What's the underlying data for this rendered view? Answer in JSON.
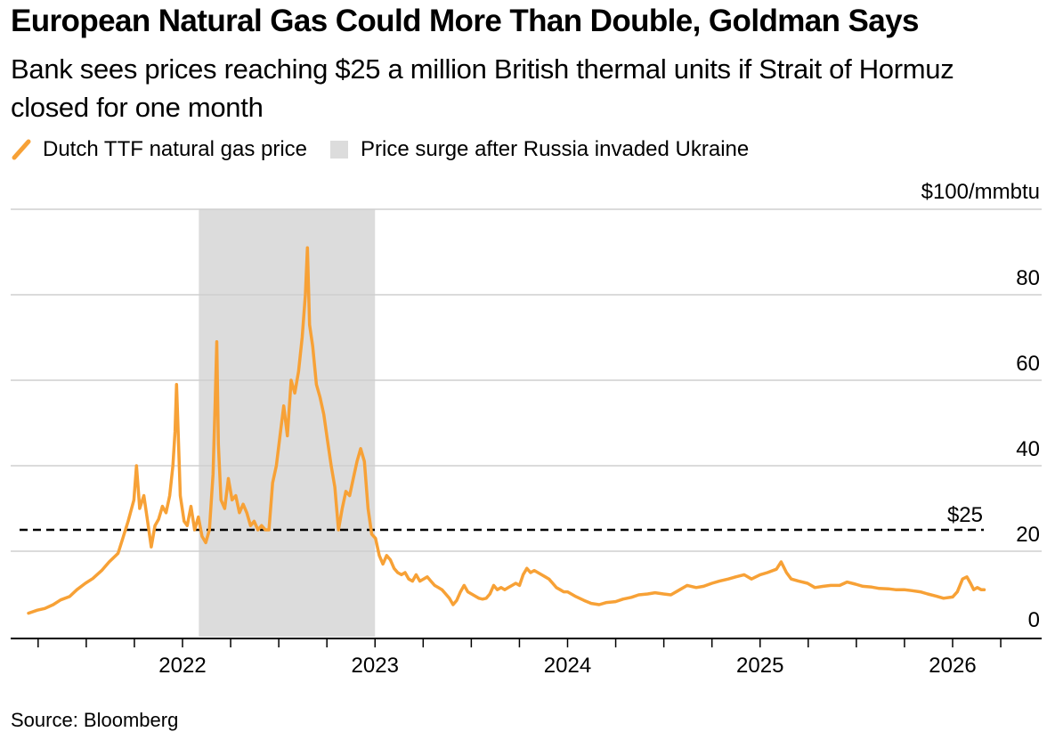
{
  "title": "European Natural Gas Could More Than Double, Goldman Says",
  "subtitle": "Bank sees prices reaching $25 a million British thermal units if Strait of Hormuz closed for one month",
  "legend": {
    "series_label": "Dutch TTF natural gas price",
    "shade_label": "Price surge after Russia invaded Ukraine"
  },
  "source": "Source: Bloomberg",
  "colors": {
    "line": "#f7a136",
    "shade": "#dcdcdc",
    "grid": "#cfcfcf",
    "axis": "#000000"
  },
  "chart_data": {
    "type": "line",
    "ylim": [
      0,
      100
    ],
    "y_ticks": [
      {
        "value": 0,
        "label": "0"
      },
      {
        "value": 20,
        "label": "20"
      },
      {
        "value": 40,
        "label": "40"
      },
      {
        "value": 60,
        "label": "60"
      },
      {
        "value": 80,
        "label": "80"
      },
      {
        "value": 100,
        "label": "$100/mmbtu"
      }
    ],
    "x_range": [
      "2021-03-01",
      "2026-05-01"
    ],
    "x_ticks": [
      "2022",
      "2023",
      "2024",
      "2025",
      "2026"
    ],
    "reference_line": {
      "value": 25,
      "label": "$25"
    },
    "shaded_period": [
      "2022-02-01",
      "2023-01-01"
    ],
    "series": [
      {
        "name": "Dutch TTF natural gas price",
        "points": [
          [
            "2021-03-15",
            5.5
          ],
          [
            "2021-04-01",
            6.2
          ],
          [
            "2021-04-15",
            6.6
          ],
          [
            "2021-05-01",
            7.5
          ],
          [
            "2021-05-15",
            8.6
          ],
          [
            "2021-06-01",
            9.4
          ],
          [
            "2021-06-15",
            11.0
          ],
          [
            "2021-07-01",
            12.5
          ],
          [
            "2021-07-15",
            13.6
          ],
          [
            "2021-08-01",
            15.5
          ],
          [
            "2021-08-15",
            17.5
          ],
          [
            "2021-09-01",
            19.5
          ],
          [
            "2021-09-10",
            23.0
          ],
          [
            "2021-09-20",
            27.0
          ],
          [
            "2021-10-01",
            32.0
          ],
          [
            "2021-10-06",
            40.0
          ],
          [
            "2021-10-12",
            30.0
          ],
          [
            "2021-10-20",
            33.0
          ],
          [
            "2021-10-27",
            27.0
          ],
          [
            "2021-11-03",
            21.0
          ],
          [
            "2021-11-10",
            26.0
          ],
          [
            "2021-11-17",
            27.5
          ],
          [
            "2021-11-24",
            30.5
          ],
          [
            "2021-12-01",
            29.0
          ],
          [
            "2021-12-08",
            33.0
          ],
          [
            "2021-12-14",
            40.0
          ],
          [
            "2021-12-18",
            48.0
          ],
          [
            "2021-12-21",
            59.0
          ],
          [
            "2021-12-24",
            48.0
          ],
          [
            "2021-12-28",
            33.0
          ],
          [
            "2022-01-04",
            27.0
          ],
          [
            "2022-01-10",
            26.0
          ],
          [
            "2022-01-17",
            30.5
          ],
          [
            "2022-01-24",
            25.0
          ],
          [
            "2022-01-31",
            28.0
          ],
          [
            "2022-02-07",
            23.5
          ],
          [
            "2022-02-14",
            22.0
          ],
          [
            "2022-02-21",
            25.0
          ],
          [
            "2022-02-28",
            38.0
          ],
          [
            "2022-03-04",
            55.0
          ],
          [
            "2022-03-07",
            69.0
          ],
          [
            "2022-03-10",
            45.0
          ],
          [
            "2022-03-15",
            32.0
          ],
          [
            "2022-03-22",
            30.0
          ],
          [
            "2022-03-29",
            37.0
          ],
          [
            "2022-04-05",
            32.0
          ],
          [
            "2022-04-12",
            33.0
          ],
          [
            "2022-04-19",
            29.0
          ],
          [
            "2022-04-26",
            31.0
          ],
          [
            "2022-05-03",
            29.0
          ],
          [
            "2022-05-10",
            26.0
          ],
          [
            "2022-05-17",
            27.0
          ],
          [
            "2022-05-24",
            25.0
          ],
          [
            "2022-05-31",
            26.0
          ],
          [
            "2022-06-07",
            25.0
          ],
          [
            "2022-06-14",
            25.0
          ],
          [
            "2022-06-21",
            36.0
          ],
          [
            "2022-06-28",
            40.0
          ],
          [
            "2022-07-05",
            47.0
          ],
          [
            "2022-07-12",
            54.0
          ],
          [
            "2022-07-19",
            47.0
          ],
          [
            "2022-07-26",
            60.0
          ],
          [
            "2022-08-02",
            57.0
          ],
          [
            "2022-08-09",
            62.0
          ],
          [
            "2022-08-16",
            70.0
          ],
          [
            "2022-08-22",
            80.0
          ],
          [
            "2022-08-26",
            91.0
          ],
          [
            "2022-08-30",
            73.0
          ],
          [
            "2022-09-05",
            68.0
          ],
          [
            "2022-09-12",
            59.0
          ],
          [
            "2022-09-19",
            56.0
          ],
          [
            "2022-09-26",
            52.0
          ],
          [
            "2022-10-03",
            46.0
          ],
          [
            "2022-10-10",
            40.0
          ],
          [
            "2022-10-17",
            35.0
          ],
          [
            "2022-10-24",
            25.0
          ],
          [
            "2022-10-31",
            30.0
          ],
          [
            "2022-11-07",
            34.0
          ],
          [
            "2022-11-14",
            33.0
          ],
          [
            "2022-11-21",
            37.0
          ],
          [
            "2022-11-28",
            41.0
          ],
          [
            "2022-12-05",
            44.0
          ],
          [
            "2022-12-12",
            41.0
          ],
          [
            "2022-12-19",
            30.0
          ],
          [
            "2022-12-26",
            24.0
          ],
          [
            "2023-01-02",
            23.0
          ],
          [
            "2023-01-09",
            19.0
          ],
          [
            "2023-01-16",
            17.0
          ],
          [
            "2023-01-23",
            19.0
          ],
          [
            "2023-01-30",
            18.0
          ],
          [
            "2023-02-06",
            16.0
          ],
          [
            "2023-02-13",
            15.0
          ],
          [
            "2023-02-20",
            14.5
          ],
          [
            "2023-02-27",
            15.0
          ],
          [
            "2023-03-06",
            13.5
          ],
          [
            "2023-03-13",
            13.0
          ],
          [
            "2023-03-20",
            14.5
          ],
          [
            "2023-03-27",
            13.0
          ],
          [
            "2023-04-03",
            13.5
          ],
          [
            "2023-04-10",
            14.0
          ],
          [
            "2023-04-17",
            13.0
          ],
          [
            "2023-04-24",
            12.0
          ],
          [
            "2023-05-01",
            11.5
          ],
          [
            "2023-05-08",
            11.0
          ],
          [
            "2023-05-15",
            10.0
          ],
          [
            "2023-05-22",
            9.0
          ],
          [
            "2023-05-29",
            7.5
          ],
          [
            "2023-06-05",
            8.5
          ],
          [
            "2023-06-12",
            10.5
          ],
          [
            "2023-06-19",
            12.0
          ],
          [
            "2023-06-26",
            10.5
          ],
          [
            "2023-07-03",
            10.0
          ],
          [
            "2023-07-10",
            9.5
          ],
          [
            "2023-07-17",
            9.0
          ],
          [
            "2023-07-24",
            8.8
          ],
          [
            "2023-07-31",
            9.0
          ],
          [
            "2023-08-07",
            10.0
          ],
          [
            "2023-08-14",
            12.0
          ],
          [
            "2023-08-21",
            11.0
          ],
          [
            "2023-08-28",
            11.5
          ],
          [
            "2023-09-04",
            11.0
          ],
          [
            "2023-09-11",
            11.5
          ],
          [
            "2023-09-18",
            12.0
          ],
          [
            "2023-09-25",
            12.5
          ],
          [
            "2023-10-02",
            12.0
          ],
          [
            "2023-10-09",
            14.5
          ],
          [
            "2023-10-16",
            16.0
          ],
          [
            "2023-10-23",
            15.0
          ],
          [
            "2023-10-30",
            15.5
          ],
          [
            "2023-11-06",
            15.0
          ],
          [
            "2023-11-13",
            14.5
          ],
          [
            "2023-11-20",
            14.0
          ],
          [
            "2023-11-27",
            13.5
          ],
          [
            "2023-12-04",
            12.5
          ],
          [
            "2023-12-11",
            11.5
          ],
          [
            "2023-12-18",
            11.0
          ],
          [
            "2023-12-25",
            10.5
          ],
          [
            "2024-01-01",
            10.5
          ],
          [
            "2024-01-15",
            9.5
          ],
          [
            "2024-02-01",
            8.5
          ],
          [
            "2024-02-15",
            7.8
          ],
          [
            "2024-03-01",
            7.5
          ],
          [
            "2024-03-15",
            8.0
          ],
          [
            "2024-04-01",
            8.2
          ],
          [
            "2024-04-15",
            8.8
          ],
          [
            "2024-05-01",
            9.2
          ],
          [
            "2024-05-15",
            9.8
          ],
          [
            "2024-06-01",
            10.0
          ],
          [
            "2024-06-15",
            10.3
          ],
          [
            "2024-07-01",
            10.0
          ],
          [
            "2024-07-15",
            9.8
          ],
          [
            "2024-08-01",
            11.0
          ],
          [
            "2024-08-15",
            12.0
          ],
          [
            "2024-09-01",
            11.5
          ],
          [
            "2024-09-15",
            11.8
          ],
          [
            "2024-10-01",
            12.5
          ],
          [
            "2024-10-15",
            13.0
          ],
          [
            "2024-11-01",
            13.5
          ],
          [
            "2024-11-15",
            14.0
          ],
          [
            "2024-12-01",
            14.5
          ],
          [
            "2024-12-15",
            13.5
          ],
          [
            "2025-01-01",
            14.5
          ],
          [
            "2025-01-15",
            15.0
          ],
          [
            "2025-02-01",
            15.8
          ],
          [
            "2025-02-10",
            17.5
          ],
          [
            "2025-02-20",
            15.0
          ],
          [
            "2025-03-01",
            13.5
          ],
          [
            "2025-03-15",
            13.0
          ],
          [
            "2025-04-01",
            12.5
          ],
          [
            "2025-04-15",
            11.5
          ],
          [
            "2025-05-01",
            11.8
          ],
          [
            "2025-05-15",
            12.0
          ],
          [
            "2025-06-01",
            12.0
          ],
          [
            "2025-06-15",
            12.8
          ],
          [
            "2025-07-01",
            12.3
          ],
          [
            "2025-07-15",
            11.8
          ],
          [
            "2025-08-01",
            11.6
          ],
          [
            "2025-08-15",
            11.3
          ],
          [
            "2025-09-01",
            11.2
          ],
          [
            "2025-09-15",
            11.0
          ],
          [
            "2025-10-01",
            11.0
          ],
          [
            "2025-10-15",
            10.8
          ],
          [
            "2025-11-01",
            10.5
          ],
          [
            "2025-11-15",
            10.0
          ],
          [
            "2025-12-01",
            9.5
          ],
          [
            "2025-12-15",
            9.0
          ],
          [
            "2026-01-01",
            9.3
          ],
          [
            "2026-01-10",
            10.5
          ],
          [
            "2026-01-20",
            13.5
          ],
          [
            "2026-01-28",
            14.0
          ],
          [
            "2026-02-04",
            12.5
          ],
          [
            "2026-02-10",
            11.0
          ],
          [
            "2026-02-17",
            11.5
          ],
          [
            "2026-02-24",
            11.0
          ],
          [
            "2026-03-02",
            11.0
          ]
        ]
      }
    ]
  }
}
